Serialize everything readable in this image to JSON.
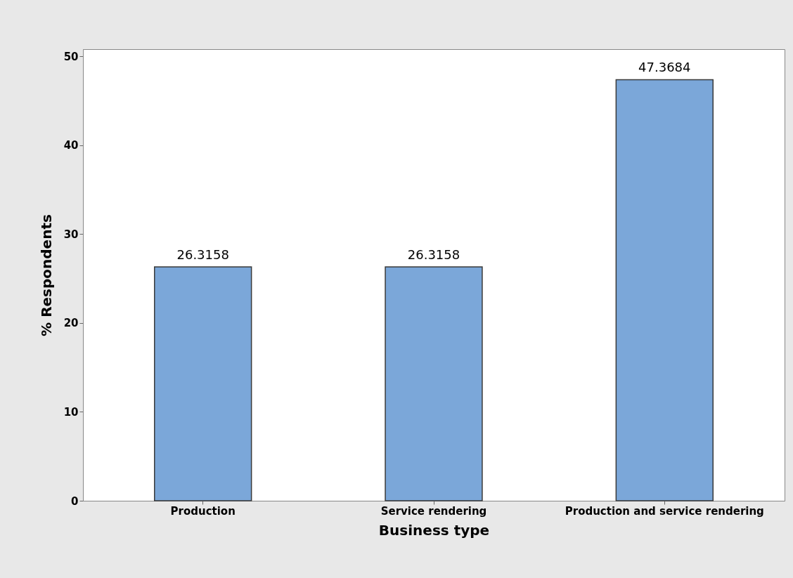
{
  "chart_data": {
    "type": "bar",
    "xlabel": "Business type",
    "ylabel": "% Respondents",
    "categories": [
      "Production",
      "Service rendering",
      "Production and service rendering"
    ],
    "values": [
      26.3158,
      26.3158,
      47.3684
    ],
    "color": "#7ba7d9",
    "ylim": [
      0,
      50.8
    ],
    "yticks": [
      0,
      10,
      20,
      30,
      40,
      50
    ],
    "data_labels": true
  }
}
